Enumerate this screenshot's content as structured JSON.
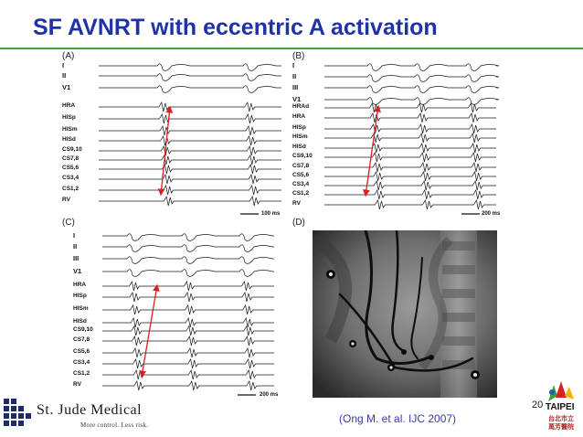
{
  "title": "SF AVNRT with eccentric A activation",
  "citation": "(Ong M. et al. IJC 2007)",
  "page_number": "20",
  "logo": {
    "company": "St. Jude Medical",
    "tagline": "More control. Less risk.",
    "partner": "TAIPEI",
    "partner_sub1": "台北市立",
    "partner_sub2": "萬芳醫院"
  },
  "panels": {
    "A": {
      "letter": "(A)",
      "leads": [
        "I",
        "II",
        "V1",
        "HRA",
        "HISp",
        "HISm",
        "HISd",
        "CS9,10",
        "CS7,8",
        "CS5,6",
        "CS3,4",
        "CS1,2",
        "RV"
      ],
      "scale": "100 ms"
    },
    "B": {
      "letter": "(B)",
      "leads": [
        "I",
        "II",
        "III",
        "V1",
        "HRAd",
        "HRA",
        "HISp",
        "HISm",
        "HISd",
        "CS9,10",
        "CS7,8",
        "CS5,6",
        "CS3,4",
        "CS1,2",
        "RV"
      ],
      "scale": "200 ms"
    },
    "C": {
      "letter": "(C)",
      "leads": [
        "I",
        "II",
        "III",
        "V1",
        "HRA",
        "HISp",
        "HISm",
        "HISd",
        "CS9,10",
        "CS7,8",
        "CS5,6",
        "CS3,4",
        "CS1,2",
        "RV"
      ],
      "scale": "200 ms"
    },
    "D": {
      "letter": "(D)"
    }
  },
  "colors": {
    "title": "#1f33a6",
    "rule": "#3aa537",
    "arrow": "#d92020",
    "citation": "#3a3aa8"
  }
}
